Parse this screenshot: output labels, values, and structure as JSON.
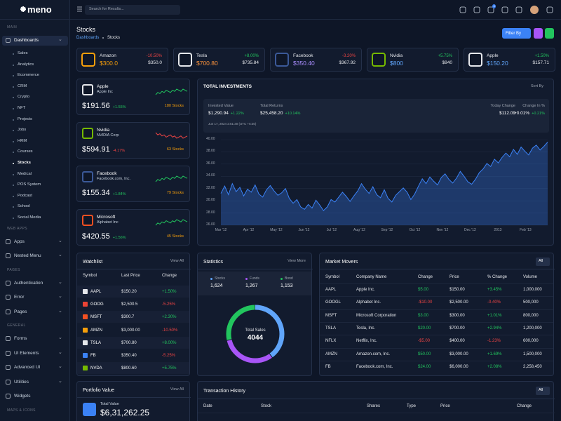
{
  "sidebar": {
    "logo": "meno",
    "sections": [
      {
        "label": "MAIN",
        "items": [
          {
            "label": "Dashboards",
            "open": true,
            "children": [
              "Sales",
              "Analytics",
              "Ecommerce",
              "CRM",
              "Crypto",
              "NFT",
              "Projects",
              "Jobs",
              "HRM",
              "Courses",
              "Stocks",
              "Medical",
              "POS System",
              "Podcast",
              "School",
              "Social Media"
            ],
            "active_child": 10
          }
        ]
      },
      {
        "label": "WEB APPS",
        "items": [
          {
            "label": "Apps",
            "expandable": true
          },
          {
            "label": "Nested Menu",
            "expandable": true
          }
        ]
      },
      {
        "label": "PAGES",
        "items": [
          {
            "label": "Authentication",
            "expandable": true
          },
          {
            "label": "Error",
            "expandable": true
          },
          {
            "label": "Pages",
            "expandable": true
          }
        ]
      },
      {
        "label": "GENERAL",
        "items": [
          {
            "label": "Forms",
            "expandable": true
          },
          {
            "label": "UI Elements",
            "expandable": true
          },
          {
            "label": "Advanced UI",
            "expandable": true
          },
          {
            "label": "Utilities",
            "expandable": true
          },
          {
            "label": "Widgets"
          }
        ]
      },
      {
        "label": "MAPS & ICONS",
        "items": []
      }
    ]
  },
  "header": {
    "search_placeholder": "Search for Results...",
    "cart_badge": "4"
  },
  "page": {
    "title": "Stocks",
    "breadcrumb": [
      "Dashboards",
      "Stocks"
    ],
    "filter": "Filter By"
  },
  "tickers": [
    {
      "name": "Amazon",
      "price": "$300.0",
      "change": "-10.50%",
      "value": "$350.0",
      "color": "#f59e0b",
      "icon": "#f59e0b"
    },
    {
      "name": "Tesla",
      "price": "$700.80",
      "change": "+8.00%",
      "value": "$735.84",
      "color": "#fb923c",
      "icon": "#e5e7eb"
    },
    {
      "name": "Facebook",
      "price": "$350.40",
      "change": "-3.20%",
      "value": "$367.92",
      "color": "#a78bfa",
      "icon": "#3b5998"
    },
    {
      "name": "Nvidia",
      "price": "$800",
      "change": "+5.75%",
      "value": "$840",
      "color": "#60a5fa",
      "icon": "#76b900"
    },
    {
      "name": "Apple",
      "price": "$150.20",
      "change": "+1.50%",
      "value": "$157.71",
      "color": "#60a5fa",
      "icon": "#e5e7eb"
    }
  ],
  "stock_cards": [
    {
      "name": "Apple",
      "company": "Apple Inc",
      "price": "$191.56",
      "change": "+1.55%",
      "stocks": "180 Stocks",
      "icon": "#e5e7eb"
    },
    {
      "name": "Nvidia",
      "company": "NVIDIA Corp",
      "price": "$594.91",
      "change": "-4.17%",
      "stocks": "63 Stocks",
      "icon": "#76b900"
    },
    {
      "name": "Facebook",
      "company": "Facebook.com, Inc.",
      "price": "$155.34",
      "change": "+1.84%",
      "stocks": "79 Stocks",
      "icon": "#3b5998"
    },
    {
      "name": "Microsoft",
      "company": "Alphabet Inc",
      "price": "$420.55",
      "change": "+1.56%",
      "stocks": "45 Stocks",
      "icon": "#f25022"
    }
  ],
  "investments": {
    "title": "TOTAL INVESTMENTS",
    "sort": "Sort By",
    "invested_label": "Invested Value",
    "invested_value": "$1,290.94",
    "invested_change": "+1.22%",
    "returns_label": "Total Returns",
    "returns_value": "$25,458.20",
    "returns_change": "+10.14%",
    "timestamp": "Jun 17, 2024 2:51:30 (UTC +5:30)",
    "today_label": "Today Change",
    "today_value": "$112.09",
    "pct_label": "Change In %",
    "pct_value": "+0.01%",
    "pct_change": "+0.21%",
    "chart": {
      "type": "area",
      "color": "#3b82f6",
      "ylim": [
        26,
        40
      ],
      "yticks": [
        {
          "value": 26,
          "label": "26.00"
        },
        {
          "value": 28,
          "label": "28.00"
        },
        {
          "value": 30,
          "label": "30.00"
        },
        {
          "value": 32,
          "label": "32.00"
        },
        {
          "value": 34,
          "label": "34.00"
        },
        {
          "value": 36,
          "label": "36.00"
        },
        {
          "value": 38,
          "label": "38.00"
        },
        {
          "value": 40,
          "label": "40.00"
        }
      ],
      "xtick_labels": [
        "Mar '12",
        "Apr '12",
        "May '12",
        "Jun '12",
        "Jul '12",
        "Aug '12",
        "Sep '12",
        "Oct '12",
        "Nov '12",
        "Dec '12",
        "2013",
        "Feb '13"
      ],
      "values": [
        31.2,
        32.4,
        31.0,
        32.8,
        31.5,
        32.2,
        30.8,
        31.9,
        31.4,
        32.6,
        31.1,
        30.6,
        31.8,
        32.5,
        31.6,
        30.9,
        31.3,
        32.0,
        30.4,
        29.6,
        30.2,
        29.0,
        28.6,
        29.4,
        28.8,
        30.1,
        29.3,
        28.4,
        29.0,
        30.2,
        29.8,
        30.6,
        31.4,
        30.7,
        29.9,
        30.8,
        31.6,
        32.8,
        31.9,
        31.2,
        32.3,
        31.0,
        30.5,
        31.8,
        30.4,
        29.8,
        30.9,
        31.5,
        32.1,
        31.4,
        30.2,
        31.1,
        32.4,
        33.6,
        32.8,
        33.9,
        33.2,
        32.6,
        33.8,
        34.4,
        33.5,
        32.9,
        33.7,
        34.8,
        34.0,
        33.1,
        32.7,
        33.5,
        34.6,
        35.2,
        36.1,
        35.6,
        36.8,
        36.2,
        37.1,
        37.8,
        37.2,
        38.4,
        37.6,
        38.8,
        38.1,
        37.5,
        38.6,
        39.1,
        38.3,
        38.9,
        39.6
      ]
    }
  },
  "watchlist": {
    "title": "Watchlist",
    "view_all": "View All",
    "columns": [
      "Symbol",
      "Last Price",
      "Change"
    ],
    "rows": [
      [
        "AAPL",
        "$150.20",
        "+1.50%"
      ],
      [
        "GOOG",
        "$2,500.5",
        "-5.25%"
      ],
      [
        "MSFT",
        "$300.7",
        "+2.30%"
      ],
      [
        "AMZN",
        "$3,000.00",
        "-10.50%"
      ],
      [
        "TSLA",
        "$700.80",
        "+8.00%"
      ],
      [
        "FB",
        "$350.40",
        "-5.25%"
      ],
      [
        "NVDA",
        "$800.60",
        "+5.75%"
      ]
    ],
    "icons": [
      "#e5e7eb",
      "#ea4335",
      "#f25022",
      "#f59e0b",
      "#e5e7eb",
      "#3b82f6",
      "#76b900"
    ]
  },
  "statistics": {
    "title": "Statistics",
    "view_more": "View More",
    "center_label": "Total Sales",
    "center_value": "4044",
    "items": [
      {
        "name": "Stocks",
        "value": 1624,
        "label": "1,624",
        "color": "#60a5fa"
      },
      {
        "name": "Funds",
        "value": 1267,
        "label": "1,267",
        "color": "#a855f7"
      },
      {
        "name": "Bond",
        "value": 1153,
        "label": "1,153",
        "color": "#22c55e"
      }
    ]
  },
  "market_movers": {
    "title": "Market Movers",
    "filter": "All",
    "columns": [
      "Symbol",
      "Company Name",
      "Change",
      "Price",
      "% Change",
      "Volume"
    ],
    "rows": [
      [
        "AAPL",
        "Apple Inc.",
        "$5.00",
        "$150.00",
        "+3.45%",
        "1,000,000"
      ],
      [
        "GOOGL",
        "Alphabet Inc.",
        "-$10.00",
        "$2,500.00",
        "-0.40%",
        "500,000"
      ],
      [
        "MSFT",
        "Microsoft Corporation",
        "$3.00",
        "$300.00",
        "+1.01%",
        "800,000"
      ],
      [
        "TSLA",
        "Tesla, Inc.",
        "$20.00",
        "$700.00",
        "+2.94%",
        "1,200,000"
      ],
      [
        "NFLX",
        "Netflix, Inc.",
        "-$5.00",
        "$400.00",
        "-1.23%",
        "600,000"
      ],
      [
        "AMZN",
        "Amazon.com, Inc.",
        "$50.00",
        "$3,000.00",
        "+1.69%",
        "1,500,000"
      ],
      [
        "FB",
        "Facebook.com, Inc.",
        "$24.00",
        "$6,000.00",
        "+2.08%",
        "2,258,450"
      ]
    ]
  },
  "portfolio": {
    "title": "Portfolio Value",
    "view_all": "View All",
    "total_label": "Total Value",
    "total_value": "$6,31,262.25"
  },
  "transactions": {
    "title": "Transaction History",
    "filter": "All",
    "columns": [
      "Date",
      "Stock",
      "Shares",
      "Type",
      "Price",
      "Change"
    ]
  }
}
